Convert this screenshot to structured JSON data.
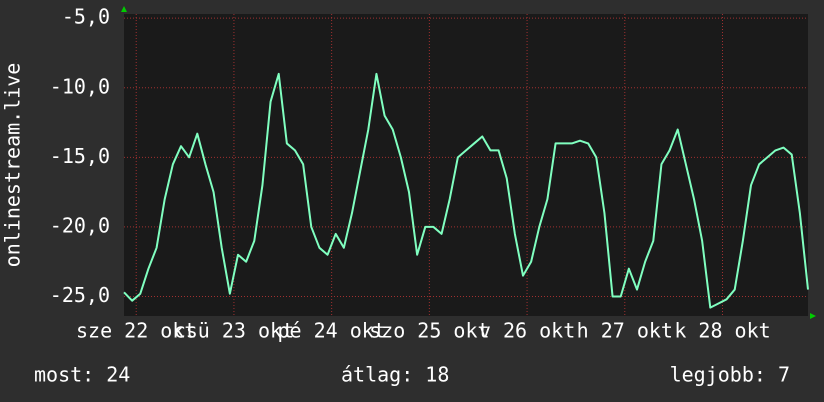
{
  "chart_data": {
    "type": "line",
    "y_label": "onlinestream.live",
    "xlim": [
      0,
      168
    ],
    "xticks": [
      {
        "value": 3,
        "label": "sze 22 okt"
      },
      {
        "value": 27,
        "label": "csü 23 okt"
      },
      {
        "value": 51,
        "label": "pé 24 okt"
      },
      {
        "value": 75,
        "label": "szo 25 okt"
      },
      {
        "value": 99,
        "label": "v 26 okt"
      },
      {
        "value": 123,
        "label": "h 27 okt"
      },
      {
        "value": 147,
        "label": "k 28 okt"
      }
    ],
    "ylim": [
      -26.4,
      -4.7
    ],
    "yticks": [
      {
        "value": -5,
        "label": "-5,0"
      },
      {
        "value": -10,
        "label": "-10,0"
      },
      {
        "value": -15,
        "label": "-15,0"
      },
      {
        "value": -20,
        "label": "-20,0"
      },
      {
        "value": -25,
        "label": "-25,0"
      }
    ],
    "grid": true,
    "x": [
      0,
      2,
      4,
      6,
      8,
      10,
      12,
      14,
      16,
      18,
      20,
      22,
      24,
      26,
      28,
      30,
      32,
      34,
      36,
      38,
      40,
      42,
      44,
      46,
      48,
      50,
      52,
      54,
      56,
      58,
      60,
      62,
      64,
      66,
      68,
      70,
      72,
      74,
      76,
      78,
      80,
      82,
      84,
      86,
      88,
      90,
      92,
      94,
      96,
      98,
      100,
      102,
      104,
      106,
      108,
      110,
      112,
      114,
      116,
      118,
      120,
      122,
      124,
      126,
      128,
      130,
      132,
      134,
      136,
      138,
      140,
      142,
      144,
      146,
      148,
      150,
      152,
      154,
      156,
      158,
      160,
      162,
      164,
      166,
      168
    ],
    "series": [
      {
        "name": "onlinestream.live",
        "color": "#80ffc0",
        "values": [
          -24.7,
          -25.3,
          -24.8,
          -23,
          -21.5,
          -18,
          -15.5,
          -14.2,
          -15,
          -13.3,
          -15.5,
          -17.5,
          -21.5,
          -24.8,
          -22,
          -22.5,
          -21,
          -17,
          -11,
          -9,
          -14,
          -14.5,
          -15.5,
          -20,
          -21.5,
          -22,
          -20.5,
          -21.5,
          -19,
          -16,
          -13,
          -9,
          -12,
          -13,
          -15,
          -17.5,
          -22,
          -20,
          -20,
          -20.5,
          -18,
          -15,
          -14.5,
          -14,
          -13.5,
          -14.5,
          -14.5,
          -16.5,
          -20.5,
          -23.5,
          -22.5,
          -20,
          -18,
          -14,
          -14,
          -14,
          -13.8,
          -14,
          -15,
          -19,
          -25,
          -25,
          -23,
          -24.5,
          -22.5,
          -21,
          -15.5,
          -14.5,
          -13,
          -15.5,
          -18,
          -21,
          -25.8,
          -25.5,
          -25.2,
          -24.5,
          -21,
          -17,
          -15.5,
          -15,
          -14.5,
          -14.3,
          -14.8,
          -19,
          -24.5
        ]
      }
    ],
    "footer": [
      "most: 24",
      "átlag: 18",
      "legjobb: 7"
    ]
  }
}
